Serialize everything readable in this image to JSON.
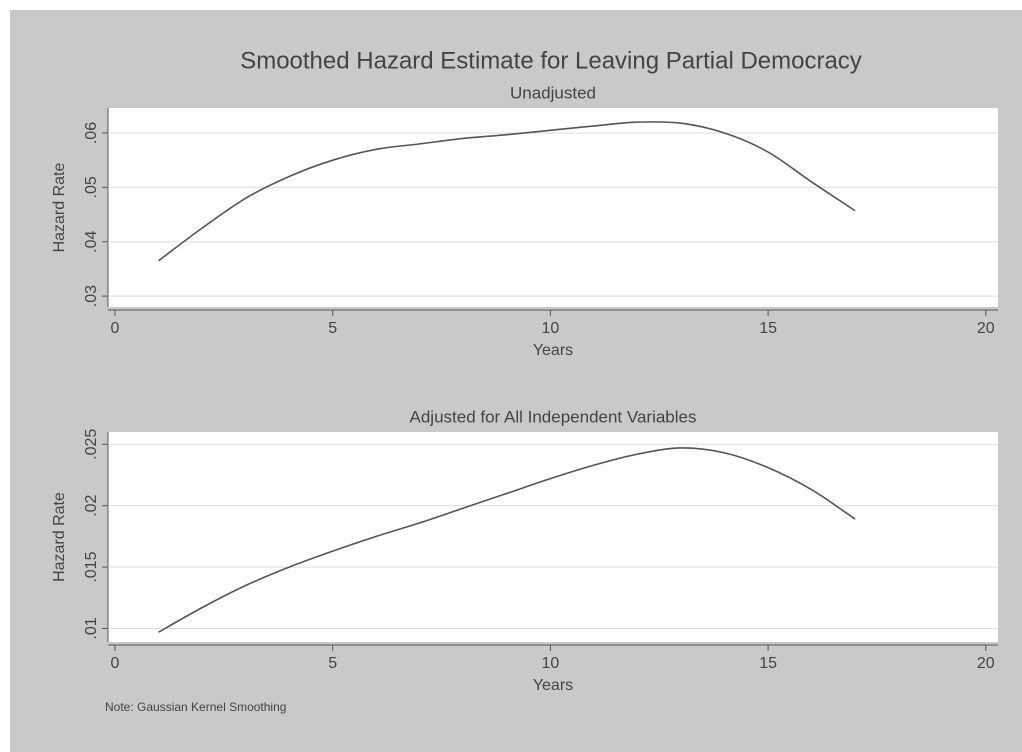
{
  "title": "Smoothed Hazard Estimate for Leaving Partial Democracy",
  "note": "Note: Gaussian Kernel Smoothing",
  "chart_data": [
    {
      "type": "line",
      "title": "Unadjusted",
      "xlabel": "Years",
      "ylabel": "Hazard Rate",
      "x": [
        1,
        2,
        3,
        4,
        5,
        6,
        7,
        8,
        9,
        10,
        11,
        12,
        13,
        14,
        15,
        16,
        17
      ],
      "series": [
        {
          "name": null,
          "color": "#555555",
          "values": [
            0.0365,
            0.0425,
            0.048,
            0.052,
            0.055,
            0.057,
            0.058,
            0.059,
            0.0597,
            0.0605,
            0.0613,
            0.062,
            0.0618,
            0.06,
            0.0565,
            0.051,
            0.0457
          ]
        }
      ],
      "xlim": [
        -0.16,
        20.28
      ],
      "xticks": [
        0,
        5,
        10,
        15,
        20
      ],
      "ylim": [
        0.028,
        0.0646
      ],
      "yticks": [
        {
          "value": 0.03,
          "label": ".03"
        },
        {
          "value": 0.04,
          "label": ".04"
        },
        {
          "value": 0.05,
          "label": ".05"
        },
        {
          "value": 0.06,
          "label": ".06"
        }
      ],
      "grid": true
    },
    {
      "type": "line",
      "title": "Adjusted for All Independent Variables",
      "xlabel": "Years",
      "ylabel": "Hazard Rate",
      "x": [
        1,
        2,
        3,
        4,
        5,
        6,
        7,
        8,
        9,
        10,
        11,
        12,
        13,
        14,
        15,
        16,
        17
      ],
      "series": [
        {
          "name": null,
          "color": "#555555",
          "values": [
            0.0097,
            0.0117,
            0.0135,
            0.015,
            0.0163,
            0.0175,
            0.0186,
            0.0198,
            0.021,
            0.0222,
            0.0233,
            0.0242,
            0.0247,
            0.0243,
            0.0231,
            0.0213,
            0.0189
          ]
        }
      ],
      "xlim": [
        -0.16,
        20.28
      ],
      "xticks": [
        0,
        5,
        10,
        15,
        20
      ],
      "ylim": [
        0.0089,
        0.026
      ],
      "yticks": [
        {
          "value": 0.01,
          "label": ".01"
        },
        {
          "value": 0.015,
          "label": ".015"
        },
        {
          "value": 0.02,
          "label": ".02"
        },
        {
          "value": 0.025,
          "label": ".025"
        }
      ],
      "grid": true
    }
  ]
}
